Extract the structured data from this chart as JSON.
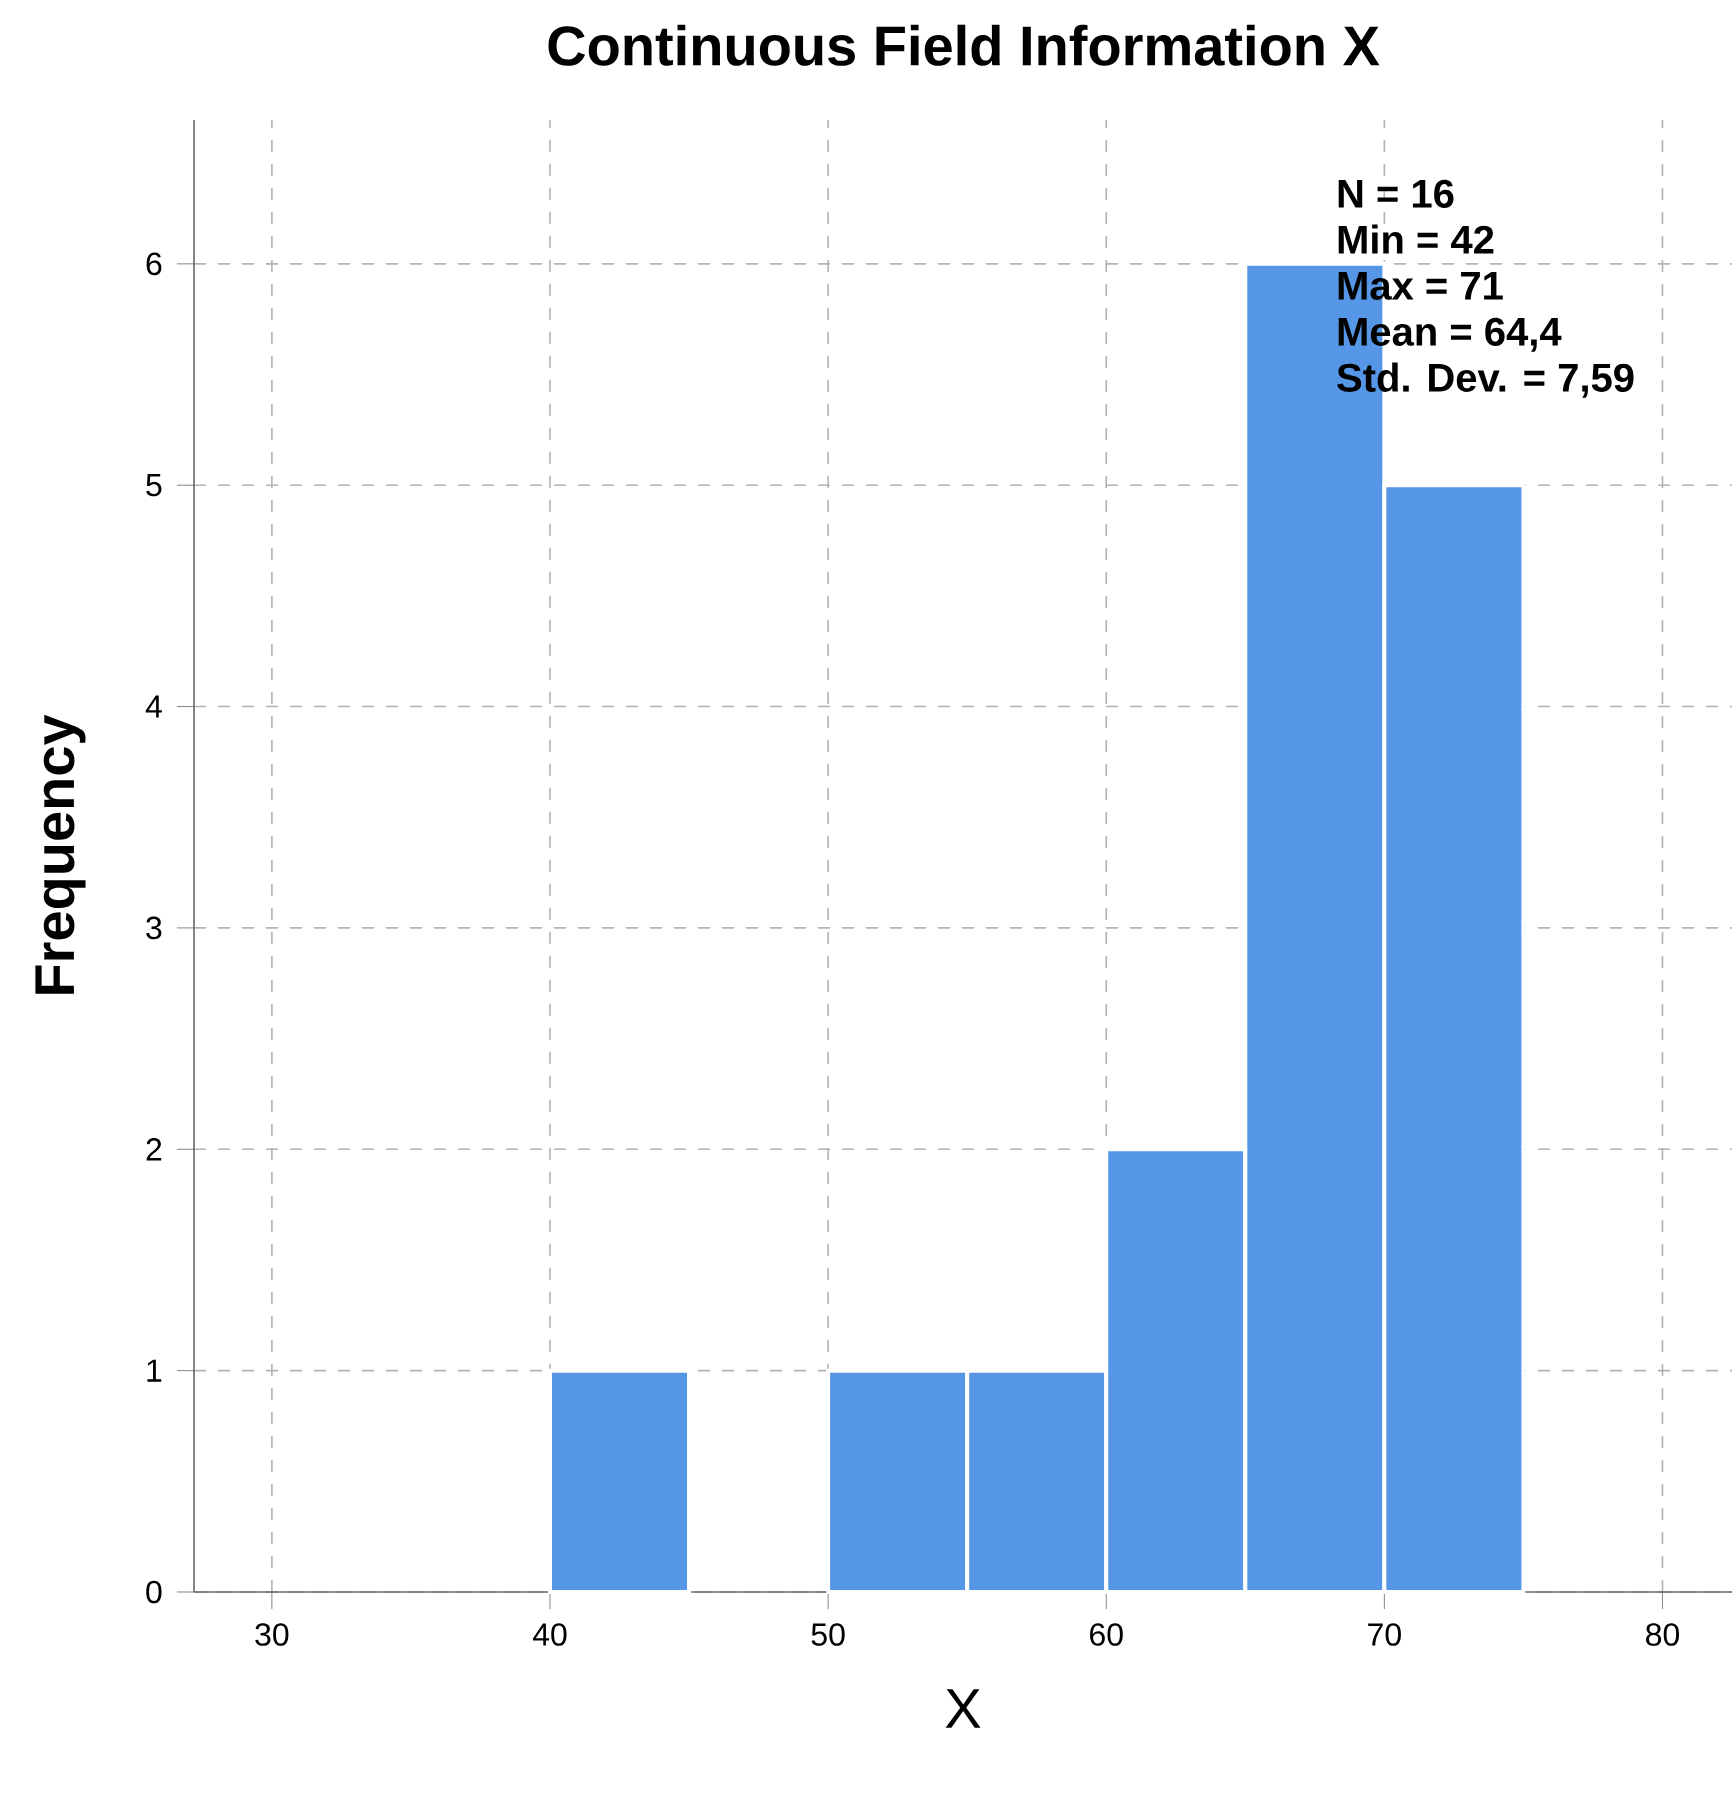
{
  "chart_data": {
    "type": "histogram",
    "title": "Continuous Field Information X",
    "xlabel": "X",
    "ylabel": "Frequency",
    "bins": [
      40,
      45,
      50,
      55,
      60,
      65,
      70,
      75
    ],
    "values": [
      1,
      0,
      1,
      1,
      2,
      6,
      5
    ],
    "color": "#5596e6",
    "xlim": [
      27.2,
      82.5
    ],
    "xticks": [
      30,
      40,
      50,
      60,
      70,
      80
    ],
    "ylim": [
      0,
      6.65
    ],
    "yticks": [
      0,
      1,
      2,
      3,
      4,
      5,
      6
    ],
    "grid": true,
    "annotations": [
      "N = 16",
      "Min = 42",
      "Max = 71",
      "Mean = 64,4",
      "Std. Dev. = 7,59"
    ]
  }
}
